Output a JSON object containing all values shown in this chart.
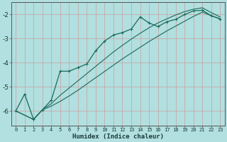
{
  "xlabel": "Humidex (Indice chaleur)",
  "bg_color": "#b2dfdf",
  "grid_color": "#d0ecec",
  "line_color": "#1a6b5a",
  "xlim": [
    -0.5,
    23.5
  ],
  "ylim": [
    -6.6,
    -1.5
  ],
  "yticks": [
    -6,
    -5,
    -4,
    -3,
    -2
  ],
  "xticks": [
    0,
    1,
    2,
    3,
    4,
    5,
    6,
    7,
    8,
    9,
    10,
    11,
    12,
    13,
    14,
    15,
    16,
    17,
    18,
    19,
    20,
    21,
    22,
    23
  ],
  "line1_x": [
    0,
    1,
    2,
    3,
    4,
    5,
    6,
    7,
    8,
    9,
    10,
    11,
    12,
    13,
    14,
    15,
    16,
    17,
    18,
    19,
    20,
    21,
    22,
    23
  ],
  "line1_y": [
    -6.0,
    -5.3,
    -6.35,
    -5.95,
    -5.55,
    -4.35,
    -4.35,
    -4.2,
    -4.05,
    -3.5,
    -3.1,
    -2.85,
    -2.75,
    -2.6,
    -2.1,
    -2.35,
    -2.5,
    -2.3,
    -2.2,
    -2.0,
    -1.85,
    -1.82,
    -2.05,
    -2.18
  ],
  "line2_x": [
    0,
    2,
    3,
    4,
    5,
    6,
    7,
    8,
    9,
    10,
    11,
    12,
    13,
    14,
    15,
    16,
    17,
    18,
    19,
    20,
    21,
    22,
    23
  ],
  "line2_y": [
    -6.0,
    -6.35,
    -5.95,
    -5.7,
    -5.35,
    -5.05,
    -4.75,
    -4.45,
    -4.15,
    -3.85,
    -3.55,
    -3.28,
    -3.02,
    -2.78,
    -2.55,
    -2.35,
    -2.18,
    -2.02,
    -1.88,
    -1.78,
    -1.72,
    -1.92,
    -2.1
  ],
  "line3_x": [
    0,
    2,
    3,
    4,
    5,
    6,
    7,
    8,
    9,
    10,
    11,
    12,
    13,
    14,
    15,
    16,
    17,
    18,
    19,
    20,
    21,
    22,
    23
  ],
  "line3_y": [
    -6.0,
    -6.35,
    -5.95,
    -5.8,
    -5.6,
    -5.38,
    -5.14,
    -4.88,
    -4.62,
    -4.36,
    -4.1,
    -3.84,
    -3.6,
    -3.36,
    -3.12,
    -2.9,
    -2.68,
    -2.48,
    -2.28,
    -2.08,
    -1.9,
    -2.05,
    -2.18
  ]
}
